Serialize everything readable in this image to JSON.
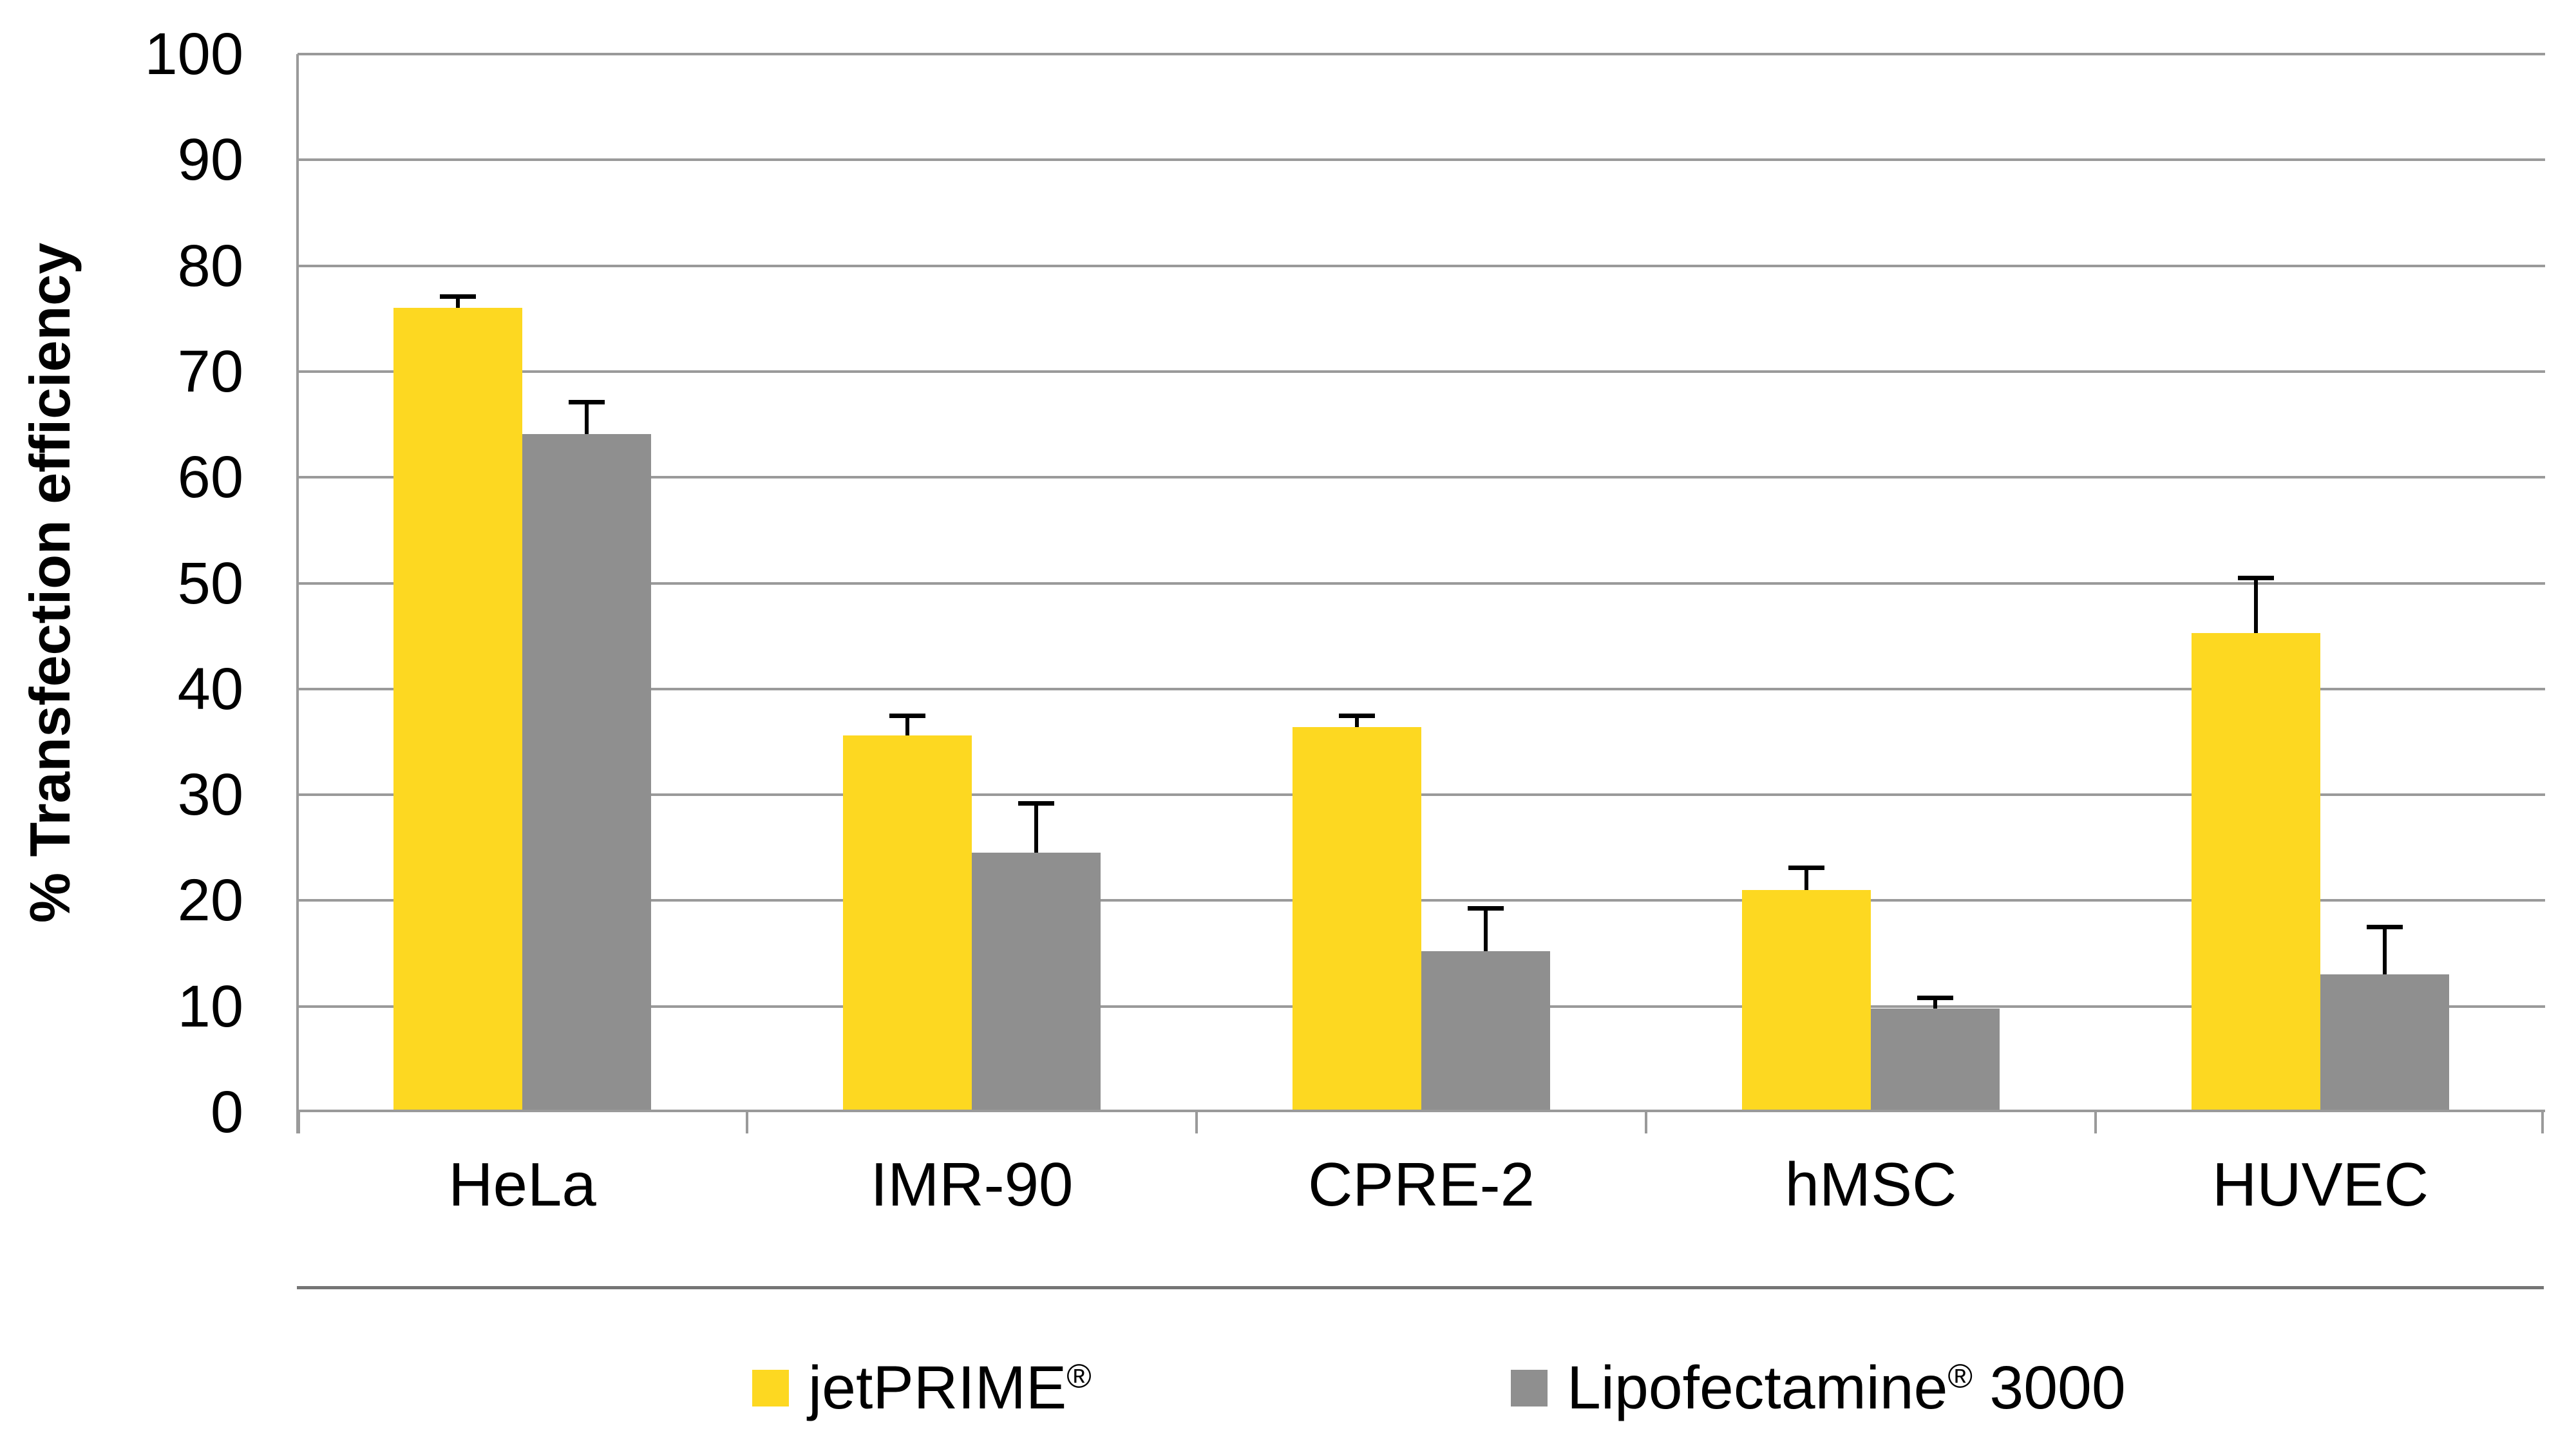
{
  "figure": {
    "background": "#ffffff",
    "gridline_color": "#9a9a9a",
    "axis_color": "#9a9a9a",
    "separator_color": "#757575",
    "error_bar_color": "#000000"
  },
  "legend": {
    "items": [
      {
        "main": "jetPRIME",
        "reg": "®",
        "suffix": "",
        "color": "#FDD821"
      },
      {
        "main": "Lipofectamine",
        "reg": "®",
        "suffix": " 3000",
        "color": "#8F8F8F"
      }
    ]
  },
  "chart_data": {
    "type": "bar",
    "title": "",
    "xlabel": "",
    "ylabel": "% Transfection efficiency",
    "ylim": [
      0,
      100
    ],
    "ytick_interval": 10,
    "ytick_labels": [
      "0",
      "10",
      "20",
      "30",
      "40",
      "50",
      "60",
      "70",
      "80",
      "90",
      "100"
    ],
    "grid": true,
    "legend_position": "bottom",
    "categories": [
      "HeLa",
      "IMR-90",
      "CPRE-2",
      "hMSC",
      "HUVEC"
    ],
    "series": [
      {
        "name": "jetPRIME®",
        "color": "#FDD821",
        "values": [
          76.0,
          35.6,
          36.4,
          21.0,
          45.3
        ],
        "error_plus": [
          1.3,
          2.1,
          1.3,
          2.3,
          5.4
        ]
      },
      {
        "name": "Lipofectamine® 3000",
        "color": "#8F8F8F",
        "values": [
          64.1,
          24.5,
          15.2,
          9.8,
          13.0
        ],
        "error_plus": [
          3.2,
          4.9,
          4.3,
          1.2,
          4.7
        ]
      }
    ]
  }
}
